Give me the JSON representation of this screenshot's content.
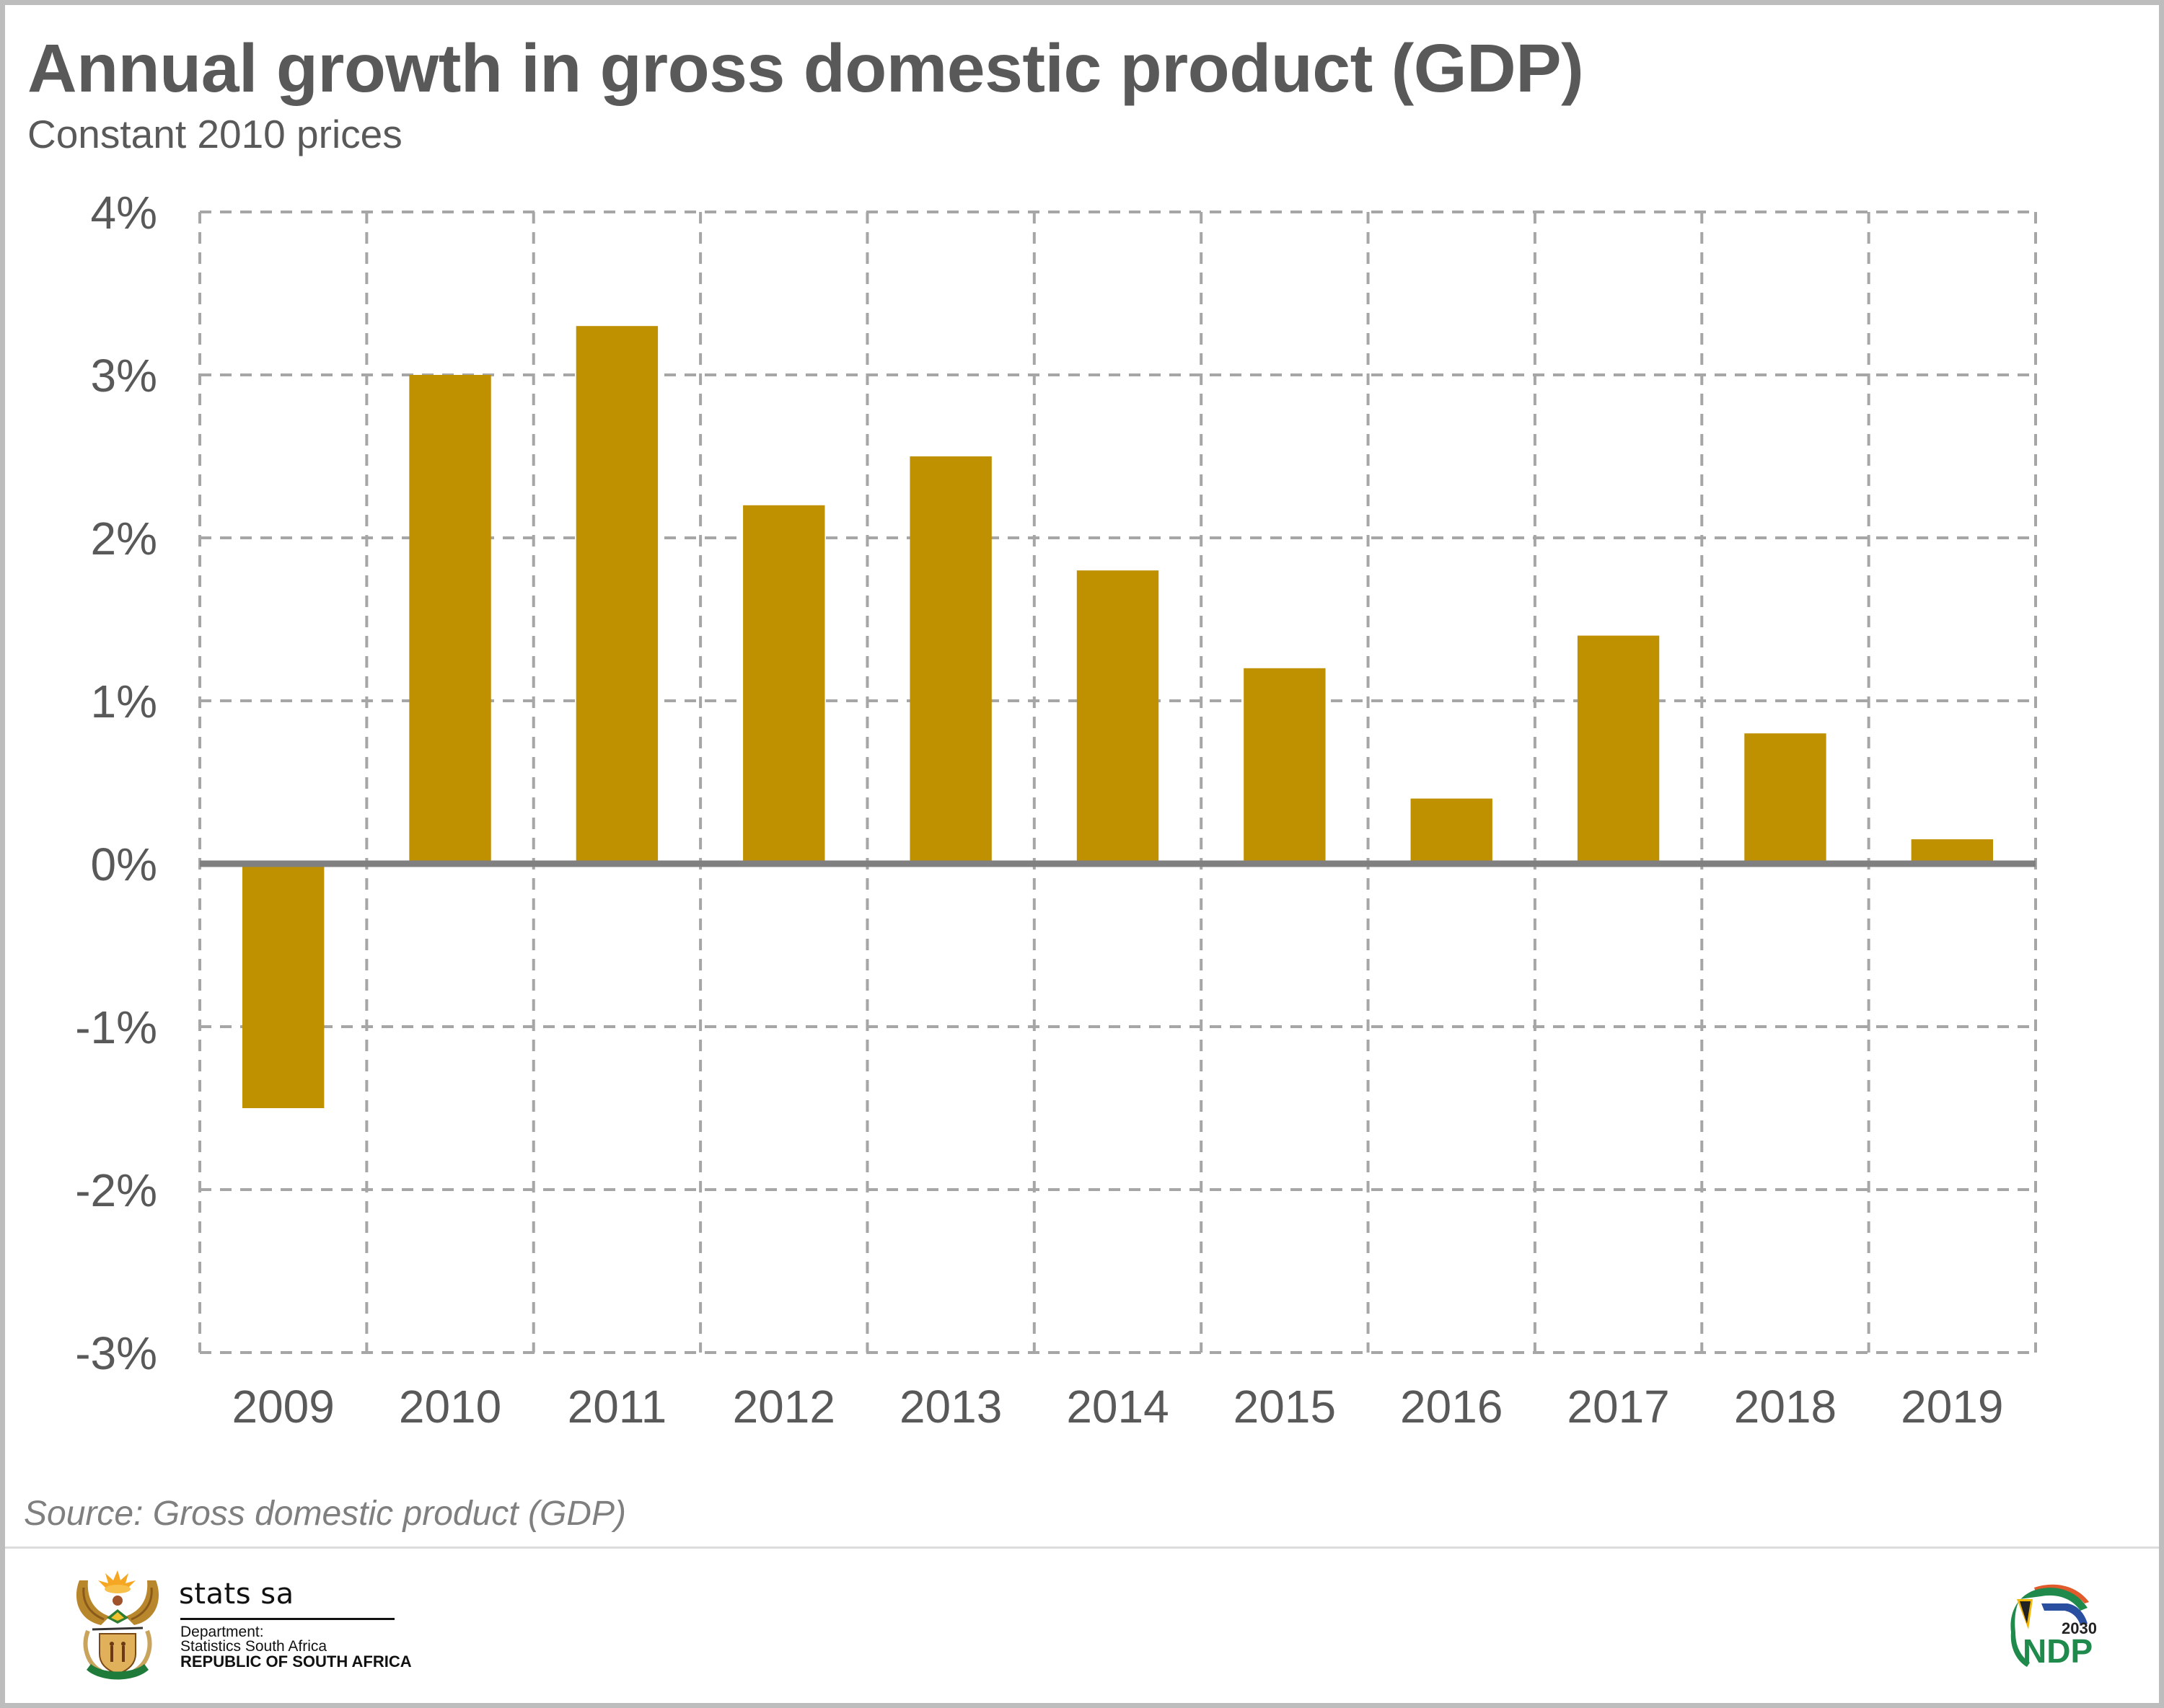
{
  "header": {
    "title": "Annual growth in gross domestic product (GDP)",
    "subtitle": "Constant 2010 prices"
  },
  "chart_data": {
    "type": "bar",
    "title": "Annual growth in gross domestic product (GDP)",
    "subtitle": "Constant 2010 prices",
    "xlabel": "",
    "ylabel": "",
    "categories": [
      "2009",
      "2010",
      "2011",
      "2012",
      "2013",
      "2014",
      "2015",
      "2016",
      "2017",
      "2018",
      "2019"
    ],
    "values": [
      -1.5,
      3.0,
      3.3,
      2.2,
      2.5,
      1.8,
      1.2,
      0.4,
      1.4,
      0.8,
      0.15
    ],
    "value_unit": "%",
    "ylim": [
      -3,
      4
    ],
    "yticks": [
      4,
      3,
      2,
      1,
      0,
      -1,
      -2,
      -3
    ],
    "ytick_labels": [
      "4%",
      "3%",
      "2%",
      "1%",
      "0%",
      "-1%",
      "-2%",
      "-3%"
    ],
    "grid": true,
    "grid_style": "dashed",
    "legend": "none",
    "colors": {
      "bar": "#bf9000",
      "grid": "#a6a6a6",
      "zero_axis": "#808080",
      "text": "#595959"
    }
  },
  "footer": {
    "source": "Source: Gross domestic product (GDP)",
    "org_logo": {
      "icon": "coat-of-arms-icon",
      "wordmark": "stats sa",
      "line1": "Department:",
      "line2": "Statistics South Africa",
      "line3": "REPUBLIC OF SOUTH AFRICA"
    },
    "ndp_logo": {
      "icon": "ndp-2030-logo-icon",
      "year": "2030",
      "text": "NDP"
    }
  }
}
